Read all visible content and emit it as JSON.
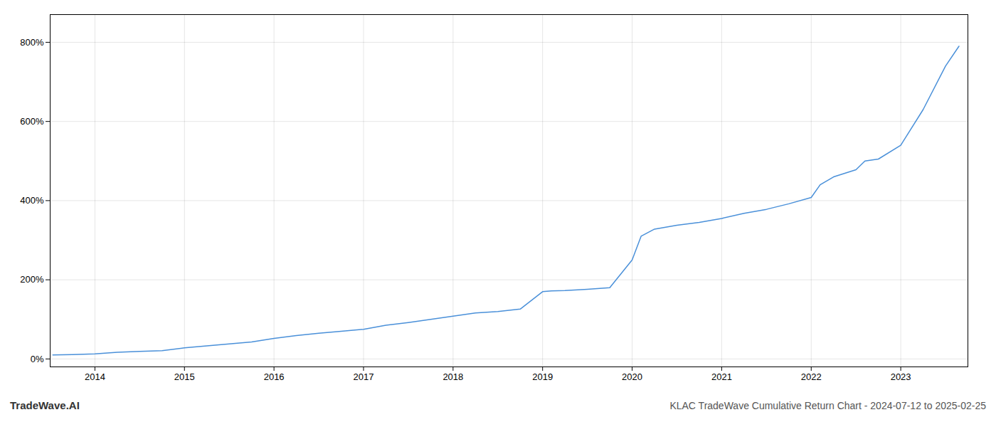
{
  "chart_data": {
    "type": "line",
    "title": "KLAC TradeWave Cumulative Return Chart - 2024-07-12 to 2025-02-25",
    "annotations": [
      "TradeWave.AI"
    ],
    "x": [
      2013.53,
      2013.75,
      2014.0,
      2014.25,
      2014.5,
      2014.75,
      2015.0,
      2015.25,
      2015.5,
      2015.75,
      2016.0,
      2016.25,
      2016.5,
      2016.75,
      2017.0,
      2017.25,
      2017.5,
      2017.75,
      2018.0,
      2018.25,
      2018.5,
      2018.75,
      2019.0,
      2019.1,
      2019.25,
      2019.5,
      2019.75,
      2020.0,
      2020.1,
      2020.25,
      2020.5,
      2020.75,
      2021.0,
      2021.25,
      2021.5,
      2021.75,
      2022.0,
      2022.1,
      2022.25,
      2022.5,
      2022.6,
      2022.75,
      2023.0,
      2023.25,
      2023.5,
      2023.65
    ],
    "values": [
      10,
      11,
      13,
      17,
      19,
      21,
      28,
      33,
      38,
      43,
      52,
      59,
      65,
      70,
      75,
      85,
      92,
      100,
      108,
      116,
      120,
      126,
      170,
      172,
      173,
      176,
      180,
      250,
      310,
      328,
      338,
      345,
      355,
      368,
      378,
      392,
      408,
      440,
      460,
      478,
      500,
      505,
      540,
      630,
      740,
      790
    ],
    "color": "#4a90d9",
    "xlim": [
      2013.5,
      2023.75
    ],
    "ylim": [
      -20,
      870
    ],
    "xticks": [
      2014,
      2015,
      2016,
      2017,
      2018,
      2019,
      2020,
      2021,
      2022,
      2023
    ],
    "yticks": [
      {
        "value": 0,
        "label": "0%"
      },
      {
        "value": 200,
        "label": "200%"
      },
      {
        "value": 400,
        "label": "400%"
      },
      {
        "value": 600,
        "label": "600%"
      },
      {
        "value": 800,
        "label": "800%"
      }
    ],
    "grid": true
  }
}
